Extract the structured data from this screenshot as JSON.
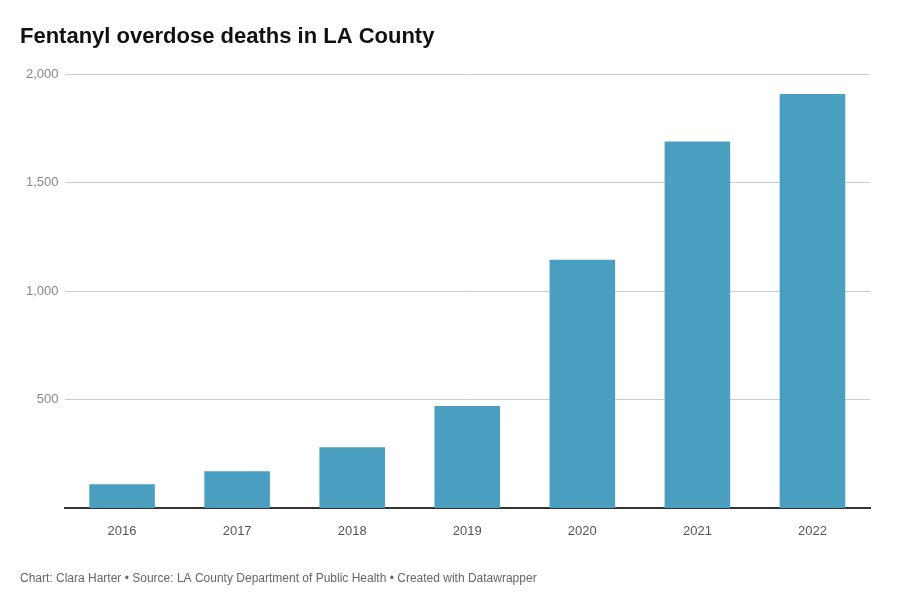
{
  "chart_data": {
    "type": "bar",
    "title": "Fentanyl overdose deaths in LA County",
    "caption": "Chart: Clara Harter • Source: LA County Department of Public Health • Created with Datawrapper",
    "categories": [
      "2016",
      "2017",
      "2018",
      "2019",
      "2020",
      "2021",
      "2022"
    ],
    "values": [
      109,
      170,
      280,
      470,
      1145,
      1690,
      1910
    ],
    "color": "#4a9fc0",
    "ylim": [
      0,
      2000
    ],
    "yticks": [
      500,
      {
        "value": 1000,
        "label": "1,000"
      },
      {
        "value": 1500,
        "label": "1,500"
      },
      {
        "value": 2000,
        "label": "2,000"
      }
    ],
    "grid": true
  }
}
